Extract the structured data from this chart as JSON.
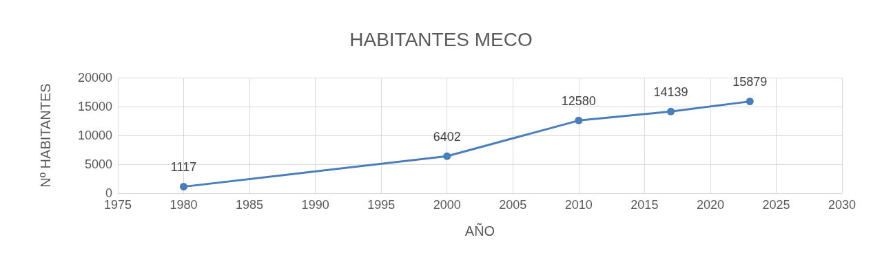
{
  "chart_data": {
    "type": "line",
    "title": "HABITANTES MECO",
    "xlabel": "AÑO",
    "ylabel": "Nº HABITANTES",
    "x": [
      1980,
      2000,
      2010,
      2017,
      2023
    ],
    "series": [
      {
        "color": "#4a7ebb",
        "values": [
          1117,
          6402,
          12580,
          14139,
          15879
        ]
      }
    ],
    "xlim": [
      1975,
      2030
    ],
    "xticks": [
      1975,
      1980,
      1985,
      1990,
      1995,
      2000,
      2005,
      2010,
      2015,
      2020,
      2025,
      2030
    ],
    "ylim": [
      0,
      20000
    ],
    "yticks": [
      0,
      5000,
      10000,
      15000,
      20000
    ],
    "grid": true,
    "marker": "circle",
    "line_style": "solid",
    "data_labels": true
  }
}
